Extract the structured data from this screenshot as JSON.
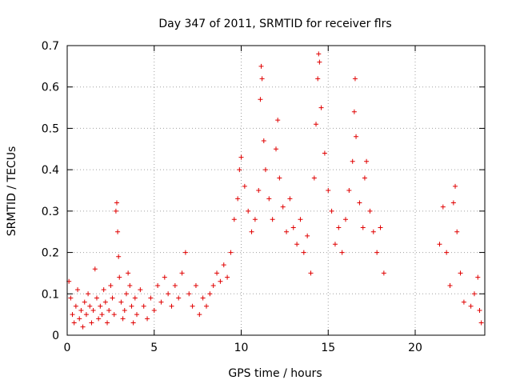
{
  "chart_data": {
    "type": "scatter",
    "title": "Day 347 of 2011, SRMTID for receiver flrs",
    "xlabel": "GPS time / hours",
    "ylabel": "SRMTID / TECUs",
    "xlim": [
      0,
      24
    ],
    "ylim": [
      0,
      0.7
    ],
    "xticks": [
      0,
      5,
      10,
      15,
      20
    ],
    "xtick_labels": [
      "0",
      "5",
      "10",
      "15",
      "20"
    ],
    "yticks": [
      0,
      0.1,
      0.2,
      0.3,
      0.4,
      0.5,
      0.6,
      0.7
    ],
    "ytick_labels": [
      "0",
      "0.1",
      "0.2",
      "0.3",
      "0.4",
      "0.5",
      "0.6",
      "0.7"
    ],
    "grid": true,
    "marker": "plus",
    "color": "#e00000",
    "series": [
      {
        "name": "SRMTID",
        "points": [
          [
            0.1,
            0.13
          ],
          [
            0.2,
            0.09
          ],
          [
            0.3,
            0.05
          ],
          [
            0.4,
            0.03
          ],
          [
            0.5,
            0.07
          ],
          [
            0.6,
            0.11
          ],
          [
            0.7,
            0.04
          ],
          [
            0.8,
            0.06
          ],
          [
            0.9,
            0.02
          ],
          [
            1.0,
            0.08
          ],
          [
            1.1,
            0.05
          ],
          [
            1.2,
            0.1
          ],
          [
            1.3,
            0.07
          ],
          [
            1.4,
            0.03
          ],
          [
            1.5,
            0.06
          ],
          [
            1.6,
            0.16
          ],
          [
            1.7,
            0.09
          ],
          [
            1.8,
            0.04
          ],
          [
            1.9,
            0.07
          ],
          [
            2.0,
            0.05
          ],
          [
            2.1,
            0.11
          ],
          [
            2.2,
            0.08
          ],
          [
            2.3,
            0.03
          ],
          [
            2.4,
            0.06
          ],
          [
            2.5,
            0.12
          ],
          [
            2.6,
            0.09
          ],
          [
            2.7,
            0.05
          ],
          [
            2.8,
            0.3
          ],
          [
            2.85,
            0.32
          ],
          [
            2.9,
            0.25
          ],
          [
            2.95,
            0.19
          ],
          [
            3.0,
            0.14
          ],
          [
            3.1,
            0.08
          ],
          [
            3.2,
            0.04
          ],
          [
            3.3,
            0.06
          ],
          [
            3.4,
            0.1
          ],
          [
            3.5,
            0.15
          ],
          [
            3.6,
            0.12
          ],
          [
            3.7,
            0.07
          ],
          [
            3.8,
            0.03
          ],
          [
            3.9,
            0.09
          ],
          [
            4.0,
            0.05
          ],
          [
            4.2,
            0.11
          ],
          [
            4.4,
            0.07
          ],
          [
            4.6,
            0.04
          ],
          [
            4.8,
            0.09
          ],
          [
            5.0,
            0.06
          ],
          [
            5.2,
            0.12
          ],
          [
            5.4,
            0.08
          ],
          [
            5.6,
            0.14
          ],
          [
            5.8,
            0.1
          ],
          [
            6.0,
            0.07
          ],
          [
            6.2,
            0.12
          ],
          [
            6.4,
            0.09
          ],
          [
            6.6,
            0.15
          ],
          [
            6.8,
            0.2
          ],
          [
            7.0,
            0.1
          ],
          [
            7.2,
            0.07
          ],
          [
            7.4,
            0.12
          ],
          [
            7.6,
            0.05
          ],
          [
            7.8,
            0.09
          ],
          [
            8.0,
            0.07
          ],
          [
            8.2,
            0.1
          ],
          [
            8.4,
            0.12
          ],
          [
            8.6,
            0.15
          ],
          [
            8.8,
            0.13
          ],
          [
            9.0,
            0.17
          ],
          [
            9.2,
            0.14
          ],
          [
            9.4,
            0.2
          ],
          [
            9.6,
            0.28
          ],
          [
            9.8,
            0.33
          ],
          [
            9.9,
            0.4
          ],
          [
            10.0,
            0.43
          ],
          [
            10.2,
            0.36
          ],
          [
            10.4,
            0.3
          ],
          [
            10.6,
            0.25
          ],
          [
            10.8,
            0.28
          ],
          [
            11.0,
            0.35
          ],
          [
            11.1,
            0.57
          ],
          [
            11.15,
            0.65
          ],
          [
            11.2,
            0.62
          ],
          [
            11.3,
            0.47
          ],
          [
            11.4,
            0.4
          ],
          [
            11.6,
            0.33
          ],
          [
            11.8,
            0.28
          ],
          [
            12.0,
            0.45
          ],
          [
            12.1,
            0.52
          ],
          [
            12.2,
            0.38
          ],
          [
            12.4,
            0.31
          ],
          [
            12.6,
            0.25
          ],
          [
            12.8,
            0.33
          ],
          [
            13.0,
            0.26
          ],
          [
            13.2,
            0.22
          ],
          [
            13.4,
            0.28
          ],
          [
            13.6,
            0.2
          ],
          [
            13.8,
            0.24
          ],
          [
            14.0,
            0.15
          ],
          [
            14.2,
            0.38
          ],
          [
            14.3,
            0.51
          ],
          [
            14.4,
            0.62
          ],
          [
            14.45,
            0.68
          ],
          [
            14.5,
            0.66
          ],
          [
            14.6,
            0.55
          ],
          [
            14.8,
            0.44
          ],
          [
            15.0,
            0.35
          ],
          [
            15.2,
            0.3
          ],
          [
            15.4,
            0.22
          ],
          [
            15.6,
            0.26
          ],
          [
            15.8,
            0.2
          ],
          [
            16.0,
            0.28
          ],
          [
            16.2,
            0.35
          ],
          [
            16.4,
            0.42
          ],
          [
            16.5,
            0.54
          ],
          [
            16.55,
            0.62
          ],
          [
            16.6,
            0.48
          ],
          [
            16.8,
            0.32
          ],
          [
            17.0,
            0.26
          ],
          [
            17.1,
            0.38
          ],
          [
            17.2,
            0.42
          ],
          [
            17.4,
            0.3
          ],
          [
            17.6,
            0.25
          ],
          [
            17.8,
            0.2
          ],
          [
            18.0,
            0.26
          ],
          [
            18.2,
            0.15
          ],
          [
            21.4,
            0.22
          ],
          [
            21.6,
            0.31
          ],
          [
            21.8,
            0.2
          ],
          [
            22.0,
            0.12
          ],
          [
            22.2,
            0.32
          ],
          [
            22.3,
            0.36
          ],
          [
            22.4,
            0.25
          ],
          [
            22.6,
            0.15
          ],
          [
            22.8,
            0.08
          ],
          [
            23.2,
            0.07
          ],
          [
            23.4,
            0.1
          ],
          [
            23.6,
            0.14
          ],
          [
            23.7,
            0.06
          ],
          [
            23.8,
            0.03
          ]
        ]
      }
    ]
  }
}
